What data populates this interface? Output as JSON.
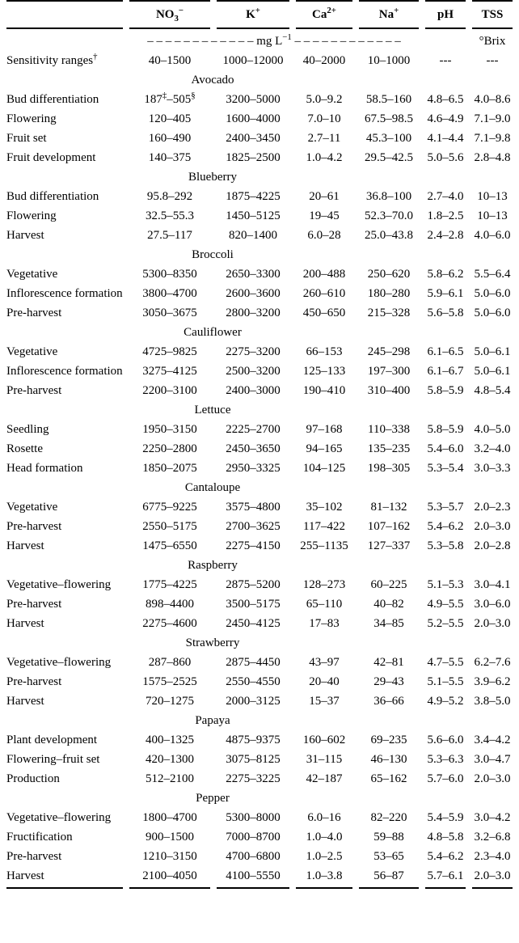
{
  "table": {
    "columns": [
      {
        "id": "stage",
        "base": ""
      },
      {
        "id": "no3",
        "base": "NO",
        "sub": "3",
        "sup": "−"
      },
      {
        "id": "k",
        "base": "K",
        "sup": "+"
      },
      {
        "id": "ca",
        "base": "Ca",
        "sup": "2+"
      },
      {
        "id": "na",
        "base": "Na",
        "sup": "+"
      },
      {
        "id": "ph",
        "base": "pH"
      },
      {
        "id": "tss",
        "base": "TSS"
      }
    ],
    "units_row": {
      "ions": "– – – – – – – – – – – – mg L^{−1} – – – – – – – – – – – –",
      "ph": "",
      "tss": "°Brix"
    },
    "sensitivity_row": {
      "label": "Sensitivity ranges^{†}",
      "values": [
        "40–1500",
        "1000–12000",
        "40–2000",
        "10–1000",
        "---",
        "---"
      ]
    },
    "sections": [
      {
        "crop": "Avocado",
        "rows": [
          {
            "stage": "Bud differentiation",
            "values": [
              "187^{‡}–505^{§}",
              "3200–5000",
              "5.0–9.2",
              "58.5–160",
              "4.8–6.5",
              "4.0–8.6"
            ]
          },
          {
            "stage": "Flowering",
            "values": [
              "120–405",
              "1600–4000",
              "7.0–10",
              "67.5–98.5",
              "4.6–4.9",
              "7.1–9.0"
            ]
          },
          {
            "stage": "Fruit set",
            "values": [
              "160–490",
              "2400–3450",
              "2.7–11",
              "45.3–100",
              "4.1–4.4",
              "7.1–9.8"
            ]
          },
          {
            "stage": "Fruit development",
            "values": [
              "140–375",
              "1825–2500",
              "1.0–4.2",
              "29.5–42.5",
              "5.0–5.6",
              "2.8–4.8"
            ]
          }
        ]
      },
      {
        "crop": "Blueberry",
        "rows": [
          {
            "stage": "Bud differentiation",
            "values": [
              "95.8–292",
              "1875–4225",
              "20–61",
              "36.8–100",
              "2.7–4.0",
              "10–13"
            ]
          },
          {
            "stage": "Flowering",
            "values": [
              "32.5–55.3",
              "1450–5125",
              "19–45",
              "52.3–70.0",
              "1.8–2.5",
              "10–13"
            ]
          },
          {
            "stage": "Harvest",
            "values": [
              "27.5–117",
              "820–1400",
              "6.0–28",
              "25.0–43.8",
              "2.4–2.8",
              "4.0–6.0"
            ]
          }
        ]
      },
      {
        "crop": "Broccoli",
        "rows": [
          {
            "stage": "Vegetative",
            "values": [
              "5300–8350",
              "2650–3300",
              "200–488",
              "250–620",
              "5.8–6.2",
              "5.5–6.4"
            ]
          },
          {
            "stage": "Inflorescence formation",
            "values": [
              "3800–4700",
              "2600–3600",
              "260–610",
              "180–280",
              "5.9–6.1",
              "5.0–6.0"
            ]
          },
          {
            "stage": "Pre-harvest",
            "values": [
              "3050–3675",
              "2800–3200",
              "450–650",
              "215–328",
              "5.6–5.8",
              "5.0–6.0"
            ]
          }
        ]
      },
      {
        "crop": "Cauliflower",
        "rows": [
          {
            "stage": "Vegetative",
            "values": [
              "4725–9825",
              "2275–3200",
              "66–153",
              "245–298",
              "6.1–6.5",
              "5.0–6.1"
            ]
          },
          {
            "stage": "Inflorescence formation",
            "values": [
              "3275–4125",
              "2500–3200",
              "125–133",
              "197–300",
              "6.1–6.7",
              "5.0–6.1"
            ]
          },
          {
            "stage": "Pre-harvest",
            "values": [
              "2200–3100",
              "2400–3000",
              "190–410",
              "310–400",
              "5.8–5.9",
              "4.8–5.4"
            ]
          }
        ]
      },
      {
        "crop": "Lettuce",
        "rows": [
          {
            "stage": "Seedling",
            "values": [
              "1950–3150",
              "2225–2700",
              "97–168",
              "110–338",
              "5.8–5.9",
              "4.0–5.0"
            ]
          },
          {
            "stage": "Rosette",
            "values": [
              "2250–2800",
              "2450–3650",
              "94–165",
              "135–235",
              "5.4–6.0",
              "3.2–4.0"
            ]
          },
          {
            "stage": "Head formation",
            "values": [
              "1850–2075",
              "2950–3325",
              "104–125",
              "198–305",
              "5.3–5.4",
              "3.0–3.3"
            ]
          }
        ]
      },
      {
        "crop": "Cantaloupe",
        "rows": [
          {
            "stage": "Vegetative",
            "values": [
              "6775–9225",
              "3575–4800",
              "35–102",
              "81–132",
              "5.3–5.7",
              "2.0–2.3"
            ]
          },
          {
            "stage": "Pre-harvest",
            "values": [
              "2550–5175",
              "2700–3625",
              "117–422",
              "107–162",
              "5.4–6.2",
              "2.0–3.0"
            ]
          },
          {
            "stage": "Harvest",
            "values": [
              "1475–6550",
              "2275–4150",
              "255–1135",
              "127–337",
              "5.3–5.8",
              "2.0–2.8"
            ]
          }
        ]
      },
      {
        "crop": "Raspberry",
        "rows": [
          {
            "stage": "Vegetative–flowering",
            "values": [
              "1775–4225",
              "2875–5200",
              "128–273",
              "60–225",
              "5.1–5.3",
              "3.0–4.1"
            ]
          },
          {
            "stage": "Pre-harvest",
            "values": [
              "898–4400",
              "3500–5175",
              "65–110",
              "40–82",
              "4.9–5.5",
              "3.0–6.0"
            ]
          },
          {
            "stage": "Harvest",
            "values": [
              "2275–4600",
              "2450–4125",
              "17–83",
              "34–85",
              "5.2–5.5",
              "2.0–3.0"
            ]
          }
        ]
      },
      {
        "crop": "Strawberry",
        "rows": [
          {
            "stage": "Vegetative–flowering",
            "values": [
              "287–860",
              "2875–4450",
              "43–97",
              "42–81",
              "4.7–5.5",
              "6.2–7.6"
            ]
          },
          {
            "stage": "Pre-harvest",
            "values": [
              "1575–2525",
              "2550–4550",
              "20–40",
              "29–43",
              "5.1–5.5",
              "3.9–6.2"
            ]
          },
          {
            "stage": "Harvest",
            "values": [
              "720–1275",
              "2000–3125",
              "15–37",
              "36–66",
              "4.9–5.2",
              "3.8–5.0"
            ]
          }
        ]
      },
      {
        "crop": "Papaya",
        "rows": [
          {
            "stage": "Plant development",
            "values": [
              "400–1325",
              "4875–9375",
              "160–602",
              "69–235",
              "5.6–6.0",
              "3.4–4.2"
            ]
          },
          {
            "stage": "Flowering–fruit set",
            "values": [
              "420–1300",
              "3075–8125",
              "31–115",
              "46–130",
              "5.3–6.3",
              "3.0–4.7"
            ]
          },
          {
            "stage": "Production",
            "values": [
              "512–2100",
              "2275–3225",
              "42–187",
              "65–162",
              "5.7–6.0",
              "2.0–3.0"
            ]
          }
        ]
      },
      {
        "crop": "Pepper",
        "rows": [
          {
            "stage": "Vegetative–flowering",
            "values": [
              "1800–4700",
              "5300–8000",
              "6.0–16",
              "82–220",
              "5.4–5.9",
              "3.0–4.2"
            ]
          },
          {
            "stage": "Fructification",
            "values": [
              "900–1500",
              "7000–8700",
              "1.0–4.0",
              "59–88",
              "4.8–5.8",
              "3.2–6.8"
            ]
          },
          {
            "stage": "Pre-harvest",
            "values": [
              "1210–3150",
              "4700–6800",
              "1.0–2.5",
              "53–65",
              "5.4–6.2",
              "2.3–4.0"
            ]
          },
          {
            "stage": "Harvest",
            "values": [
              "2100–4050",
              "4100–5550",
              "1.0–3.8",
              "56–87",
              "5.7–6.1",
              "2.0–3.0"
            ]
          }
        ]
      }
    ]
  }
}
